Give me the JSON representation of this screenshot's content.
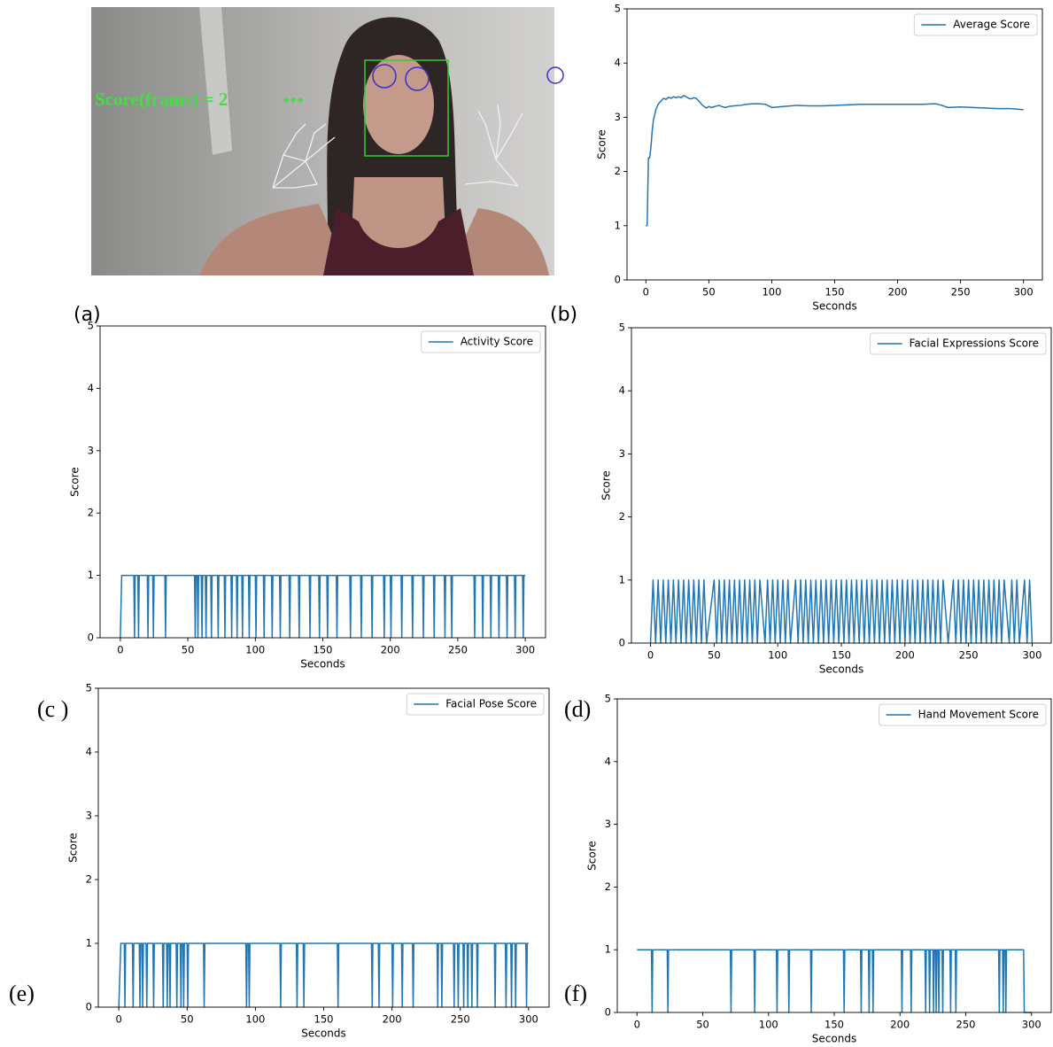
{
  "photo": {
    "overlay_text": "Score(frame) = 2"
  },
  "panel_labels": [
    "(a)",
    "(b)",
    "(c )",
    "(d)",
    "(e)",
    "(f)"
  ],
  "chart_data": [
    {
      "type": "line",
      "x_label": "Seconds",
      "y_label": "Score",
      "legend": "upper right",
      "xlim": [
        -15,
        315
      ],
      "xticks": [
        0,
        50,
        100,
        150,
        200,
        250,
        300
      ],
      "ylim": [
        0,
        5
      ],
      "yticks": [
        0,
        1,
        2,
        3,
        4,
        5
      ],
      "x": [
        0,
        1,
        2,
        3,
        4,
        5,
        6,
        7,
        8,
        10,
        12,
        14,
        16,
        18,
        20,
        22,
        24,
        26,
        28,
        30,
        32,
        34,
        36,
        38,
        40,
        42,
        45,
        48,
        50,
        52,
        55,
        58,
        60,
        63,
        66,
        70,
        75,
        80,
        85,
        90,
        95,
        100,
        110,
        120,
        130,
        140,
        150,
        160,
        170,
        180,
        190,
        200,
        210,
        220,
        230,
        235,
        240,
        250,
        260,
        270,
        280,
        290,
        300
      ],
      "series": [
        {
          "name": "Average Score",
          "color": "#1f77b4",
          "values": [
            1,
            1,
            2.25,
            2.25,
            2.45,
            2.75,
            2.95,
            3.05,
            3.15,
            3.25,
            3.3,
            3.35,
            3.33,
            3.37,
            3.35,
            3.38,
            3.36,
            3.38,
            3.36,
            3.4,
            3.38,
            3.35,
            3.34,
            3.36,
            3.35,
            3.3,
            3.22,
            3.17,
            3.2,
            3.18,
            3.2,
            3.22,
            3.2,
            3.18,
            3.2,
            3.21,
            3.22,
            3.24,
            3.25,
            3.25,
            3.24,
            3.18,
            3.2,
            3.22,
            3.21,
            3.21,
            3.22,
            3.23,
            3.24,
            3.24,
            3.24,
            3.24,
            3.24,
            3.24,
            3.25,
            3.22,
            3.18,
            3.19,
            3.18,
            3.17,
            3.16,
            3.16,
            3.14
          ]
        }
      ]
    },
    {
      "type": "line",
      "x_label": "Seconds",
      "y_label": "Score",
      "legend": "upper right",
      "xlim": [
        -15,
        315
      ],
      "xticks": [
        0,
        50,
        100,
        150,
        200,
        250,
        300
      ],
      "ylim": [
        0,
        5
      ],
      "yticks": [
        0,
        1,
        2,
        3,
        4,
        5
      ],
      "x": [
        0,
        1,
        10,
        10.5,
        11,
        13,
        13.5,
        14,
        20,
        20.5,
        21,
        24,
        24.5,
        25,
        33,
        33.5,
        34,
        55,
        55.5,
        56,
        57,
        57.5,
        58,
        60,
        60.5,
        61,
        63,
        63.5,
        64,
        67,
        67.5,
        68,
        72,
        72.5,
        73,
        77,
        77.5,
        78,
        82,
        82.5,
        83,
        86,
        86.5,
        87,
        90,
        90.5,
        91,
        95,
        95.5,
        96,
        100,
        100.5,
        101,
        106,
        106.5,
        107,
        112,
        112.5,
        113,
        118,
        118.5,
        119,
        125,
        125.5,
        126,
        132,
        132.5,
        133,
        140,
        140.5,
        141,
        147,
        147.5,
        148,
        153,
        153.5,
        154,
        160,
        160.5,
        161,
        170,
        170.5,
        171,
        178,
        178.5,
        179,
        186,
        186.5,
        187,
        195,
        195.5,
        196,
        200,
        200.5,
        201,
        208,
        208.5,
        209,
        216,
        216.5,
        217,
        224,
        224.5,
        225,
        232,
        232.5,
        233,
        240,
        240.5,
        241,
        245,
        245.5,
        246,
        262,
        262.5,
        263,
        268,
        268.5,
        269,
        274,
        274.5,
        275,
        280,
        280.5,
        281,
        286,
        286.5,
        287,
        292,
        292.5,
        293,
        298,
        298.5,
        299,
        300
      ],
      "series": [
        {
          "name": "Activity Score",
          "color": "#1f77b4",
          "values": [
            0,
            1,
            1,
            0,
            1,
            1,
            0,
            1,
            1,
            0,
            1,
            1,
            0,
            1,
            1,
            0,
            1,
            1,
            0,
            1,
            1,
            0,
            1,
            1,
            0,
            1,
            1,
            0,
            1,
            1,
            0,
            1,
            1,
            0,
            1,
            1,
            0,
            1,
            1,
            0,
            1,
            1,
            0,
            1,
            1,
            0,
            1,
            1,
            0,
            1,
            1,
            0,
            1,
            1,
            0,
            1,
            1,
            0,
            1,
            1,
            0,
            1,
            1,
            0,
            1,
            1,
            0,
            1,
            1,
            0,
            1,
            1,
            0,
            1,
            1,
            0,
            1,
            1,
            0,
            1,
            1,
            0,
            1,
            1,
            0,
            1,
            1,
            0,
            1,
            1,
            0,
            1,
            1,
            0,
            1,
            1,
            0,
            1,
            1,
            0,
            1,
            1,
            0,
            1,
            1,
            0,
            1,
            1,
            0,
            1,
            1,
            0,
            1,
            1,
            0,
            1,
            1,
            0,
            1,
            1,
            0,
            1,
            1,
            0,
            1,
            1,
            0,
            1,
            1,
            0,
            1,
            1,
            0,
            1,
            1
          ]
        }
      ]
    },
    {
      "type": "line",
      "x_label": "Seconds",
      "y_label": "Score",
      "legend": "upper right",
      "xlim": [
        -15,
        315
      ],
      "xticks": [
        0,
        50,
        100,
        150,
        200,
        250,
        300
      ],
      "ylim": [
        0,
        5
      ],
      "yticks": [
        0,
        1,
        2,
        3,
        4,
        5
      ],
      "x": [
        0,
        2,
        4,
        6,
        8,
        10,
        12,
        14,
        16,
        18,
        20,
        22,
        24,
        26,
        28,
        30,
        32,
        34,
        36,
        38,
        40,
        42,
        44,
        50,
        52,
        54,
        56,
        58,
        60,
        62,
        64,
        66,
        68,
        70,
        72,
        74,
        76,
        78,
        80,
        82,
        84,
        86,
        90,
        92,
        94,
        96,
        98,
        100,
        102,
        104,
        106,
        108,
        110,
        114,
        116,
        118,
        120,
        122,
        124,
        126,
        128,
        130,
        132,
        134,
        136,
        138,
        140,
        142,
        144,
        146,
        148,
        150,
        152,
        154,
        156,
        158,
        160,
        162,
        164,
        166,
        168,
        170,
        172,
        174,
        176,
        178,
        180,
        182,
        184,
        186,
        188,
        190,
        192,
        194,
        196,
        198,
        200,
        202,
        204,
        206,
        208,
        210,
        212,
        214,
        216,
        218,
        220,
        222,
        224,
        226,
        228,
        230,
        234,
        238,
        240,
        242,
        244,
        246,
        248,
        250,
        252,
        254,
        256,
        258,
        260,
        262,
        264,
        266,
        268,
        270,
        272,
        274,
        276,
        278,
        282,
        284,
        286,
        288,
        290,
        294,
        296,
        298,
        300
      ],
      "series": [
        {
          "name": "Facial Expressions Score",
          "color": "#1f77b4",
          "values": [
            0,
            1,
            0,
            1,
            0,
            1,
            0,
            1,
            0,
            1,
            0,
            1,
            0,
            1,
            0,
            1,
            0,
            1,
            0,
            1,
            0,
            1,
            0,
            1,
            0,
            1,
            0,
            1,
            0,
            1,
            0,
            1,
            0,
            1,
            0,
            1,
            0,
            1,
            0,
            1,
            0,
            1,
            0,
            1,
            0,
            1,
            0,
            1,
            0,
            1,
            0,
            1,
            0,
            1,
            0,
            1,
            0,
            1,
            0,
            1,
            0,
            1,
            0,
            1,
            0,
            1,
            0,
            1,
            0,
            1,
            0,
            1,
            0,
            1,
            0,
            1,
            0,
            1,
            0,
            1,
            0,
            1,
            0,
            1,
            0,
            1,
            0,
            1,
            0,
            1,
            0,
            1,
            0,
            1,
            0,
            1,
            0,
            1,
            0,
            1,
            0,
            1,
            0,
            1,
            0,
            1,
            0,
            1,
            0,
            1,
            0,
            1,
            0,
            1,
            0,
            1,
            0,
            1,
            0,
            1,
            0,
            1,
            0,
            1,
            0,
            1,
            0,
            1,
            0,
            1,
            0,
            1,
            0,
            1,
            0,
            1,
            0,
            1,
            0,
            1,
            0,
            1,
            0
          ]
        }
      ]
    },
    {
      "type": "line",
      "x_label": "Seconds",
      "y_label": "Score",
      "legend": "upper right",
      "xlim": [
        -15,
        315
      ],
      "xticks": [
        0,
        50,
        100,
        150,
        200,
        250,
        300
      ],
      "ylim": [
        0,
        5
      ],
      "yticks": [
        0,
        1,
        2,
        3,
        4,
        5
      ],
      "x": [
        0,
        1.5,
        4,
        4.5,
        5,
        10,
        10.5,
        11,
        15,
        15.5,
        16,
        17,
        17.5,
        18,
        20,
        20.5,
        21,
        25,
        25.5,
        26,
        32,
        32.5,
        33,
        35,
        35.5,
        36,
        37,
        37.5,
        38,
        42,
        42.5,
        43,
        45,
        45.5,
        46,
        47,
        47.5,
        48,
        50,
        50.5,
        51,
        62,
        62.5,
        63,
        93,
        93.5,
        94,
        95,
        95.5,
        96,
        118,
        118.5,
        119,
        130,
        130.5,
        131,
        135,
        135.5,
        136,
        160,
        160.5,
        161,
        185,
        185.5,
        186,
        190,
        190.5,
        191,
        200,
        200.5,
        201,
        207,
        207.5,
        208,
        215,
        215.5,
        216,
        233,
        233.5,
        234,
        236,
        236.5,
        237,
        245,
        245.5,
        246,
        248,
        248.5,
        249,
        252,
        252.5,
        253,
        255,
        255.5,
        256,
        258,
        258.5,
        259,
        262,
        262.5,
        263,
        275,
        275.5,
        276,
        283,
        283.5,
        284,
        287,
        287.5,
        288,
        290,
        290.5,
        291,
        298,
        298.5,
        299,
        300
      ],
      "series": [
        {
          "name": "Facial Pose Score",
          "color": "#1f77b4",
          "values": [
            0,
            1,
            1,
            0,
            1,
            1,
            0,
            1,
            1,
            0,
            1,
            1,
            0,
            1,
            1,
            0,
            1,
            1,
            0,
            1,
            1,
            0,
            1,
            1,
            0,
            1,
            1,
            0,
            1,
            1,
            0,
            1,
            1,
            0,
            1,
            1,
            0,
            1,
            1,
            0,
            1,
            1,
            0,
            1,
            1,
            0,
            1,
            1,
            0,
            1,
            1,
            0,
            1,
            1,
            0,
            1,
            1,
            0,
            1,
            1,
            0,
            1,
            1,
            0,
            1,
            1,
            0,
            1,
            1,
            0,
            1,
            1,
            0,
            1,
            1,
            0,
            1,
            1,
            0,
            1,
            1,
            0,
            1,
            1,
            0,
            1,
            1,
            0,
            1,
            1,
            0,
            1,
            1,
            0,
            1,
            1,
            0,
            1,
            1,
            0,
            1,
            1,
            0,
            1,
            1,
            0,
            1,
            1,
            0,
            1,
            1,
            0,
            1,
            1,
            0,
            1,
            1
          ]
        }
      ]
    },
    {
      "type": "line",
      "x_label": "Seconds",
      "y_label": "Score",
      "legend": "upper right",
      "xlim": [
        -15,
        315
      ],
      "xticks": [
        0,
        50,
        100,
        150,
        200,
        250,
        300
      ],
      "ylim": [
        0,
        5
      ],
      "yticks": [
        0,
        1,
        2,
        3,
        4,
        5
      ],
      "x": [
        0,
        11,
        11.5,
        12,
        23,
        23.5,
        24,
        71,
        71.5,
        72,
        89,
        89.5,
        90,
        106,
        106.5,
        107,
        115,
        115.5,
        116,
        132,
        132.5,
        133,
        157,
        157.5,
        158,
        170,
        170.5,
        171,
        176,
        176.5,
        177,
        179,
        179.5,
        180,
        201,
        201.5,
        202,
        208,
        208.5,
        209,
        219,
        219.5,
        220,
        222,
        222.5,
        223,
        225,
        225.5,
        226,
        227,
        227.5,
        228,
        229,
        229.5,
        230,
        232,
        232.5,
        233,
        238,
        238.5,
        239,
        242,
        242.5,
        243,
        275,
        275.5,
        276,
        278,
        278.5,
        279,
        280,
        280.5,
        281,
        294,
        294.5,
        300
      ],
      "series": [
        {
          "name": "Hand Movement Score",
          "color": "#1f77b4",
          "values": [
            1,
            1,
            0,
            1,
            1,
            0,
            1,
            1,
            0,
            1,
            1,
            0,
            1,
            1,
            0,
            1,
            1,
            0,
            1,
            1,
            0,
            1,
            1,
            0,
            1,
            1,
            0,
            1,
            1,
            0,
            1,
            1,
            0,
            1,
            1,
            0,
            1,
            1,
            0,
            1,
            1,
            0,
            1,
            1,
            0,
            1,
            1,
            0,
            1,
            1,
            0,
            1,
            1,
            0,
            1,
            1,
            0,
            1,
            1,
            0,
            1,
            1,
            0,
            1,
            1,
            0,
            1,
            1,
            0,
            1,
            1,
            0,
            1,
            1,
            0,
            0
          ]
        }
      ]
    }
  ]
}
